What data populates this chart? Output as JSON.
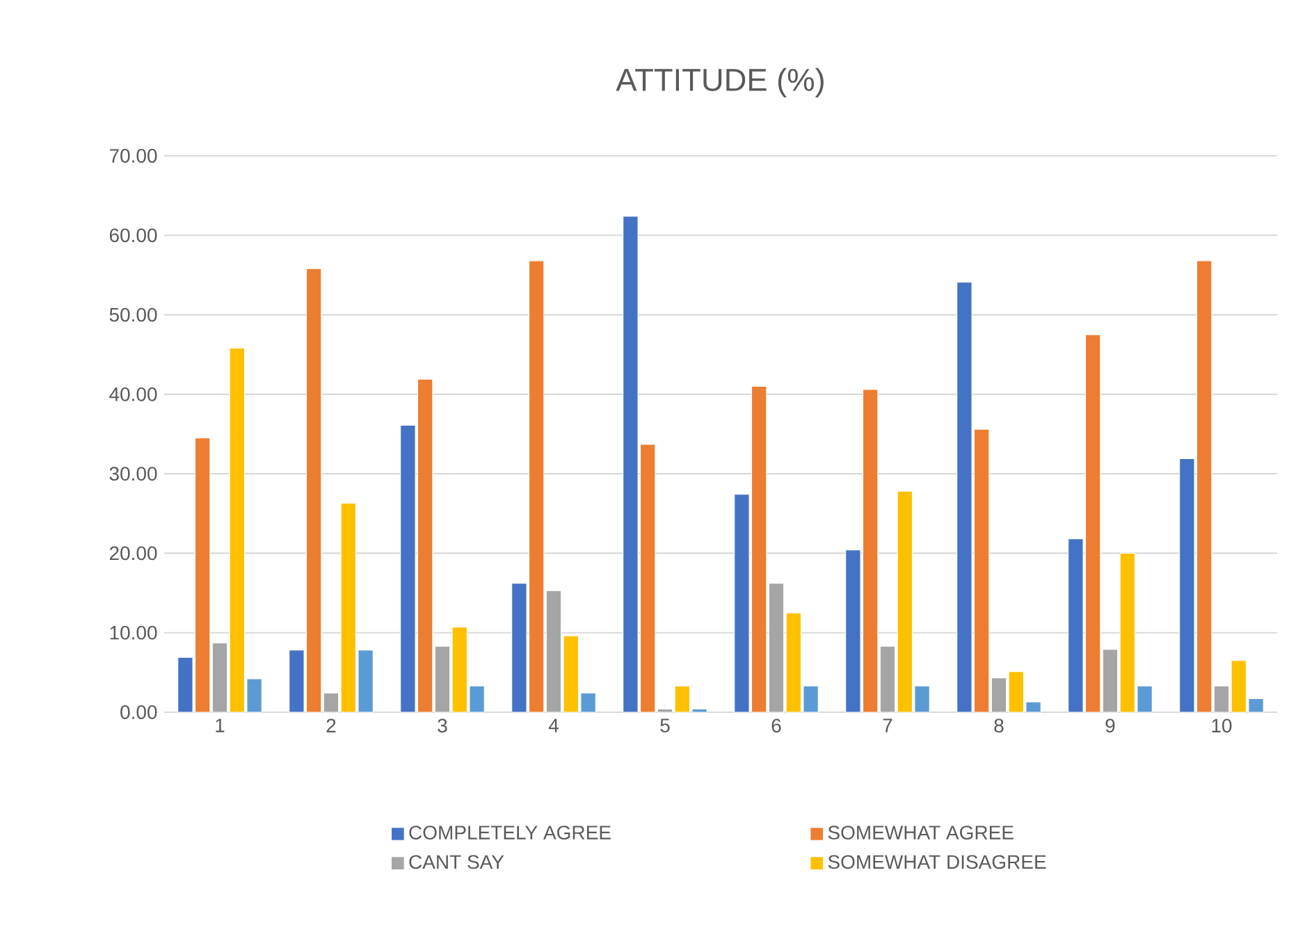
{
  "chart_data": {
    "type": "bar",
    "title": "ATTITUDE  (%)",
    "categories": [
      "1",
      "2",
      "3",
      "4",
      "5",
      "6",
      "7",
      "8",
      "9",
      "10"
    ],
    "series": [
      {
        "name": "COMPLETELY AGREE",
        "color": "#4472c4",
        "values": [
          6.9,
          7.8,
          36.1,
          16.2,
          62.4,
          27.4,
          20.4,
          54.1,
          21.8,
          31.9
        ]
      },
      {
        "name": "SOMEWHAT AGREE",
        "color": "#ed7d31",
        "values": [
          34.5,
          55.8,
          41.9,
          56.8,
          33.7,
          41.0,
          40.6,
          35.6,
          47.5,
          56.8
        ]
      },
      {
        "name": "CANT SAY",
        "color": "#a5a5a5",
        "values": [
          8.7,
          2.4,
          8.3,
          15.3,
          0.4,
          16.2,
          8.3,
          4.3,
          7.9,
          3.3
        ]
      },
      {
        "name": "SOMEWHAT DISAGREE",
        "color": "#ffc000",
        "values": [
          45.8,
          26.3,
          10.7,
          9.6,
          3.3,
          12.5,
          27.8,
          5.1,
          20.0,
          6.5
        ]
      },
      {
        "color": "#5b9bd5",
        "values": [
          4.2,
          7.8,
          3.3,
          2.4,
          0.4,
          3.3,
          3.3,
          1.3,
          3.3,
          1.7
        ]
      }
    ],
    "ylim": [
      0,
      70
    ],
    "yticks": [
      {
        "value": 0,
        "label": "0.00"
      },
      {
        "value": 10,
        "label": "10.00"
      },
      {
        "value": 20,
        "label": "20.00"
      },
      {
        "value": 30,
        "label": "30.00"
      },
      {
        "value": 40,
        "label": "40.00"
      },
      {
        "value": 50,
        "label": "50.00"
      },
      {
        "value": 60,
        "label": "60.00"
      },
      {
        "value": 70,
        "label": "70.00"
      }
    ],
    "grid": "y",
    "legend": "bottom"
  }
}
